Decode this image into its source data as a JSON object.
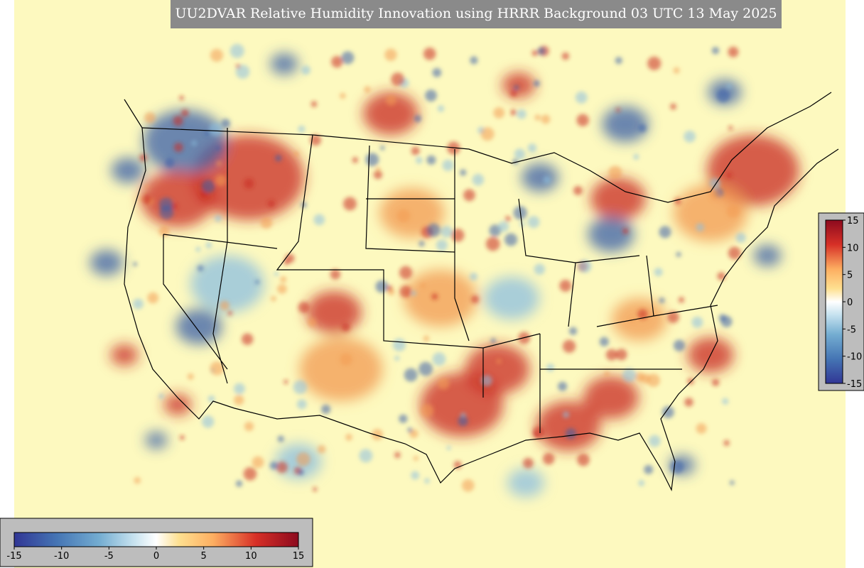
{
  "title": "UU2DVAR Relative Humidity Innovation using HRRR Background 03 UTC 13 May 2025",
  "colorbar_horizontal": {
    "ticks": [
      -15,
      -10,
      -5,
      0,
      5,
      10,
      15
    ]
  },
  "colorbar_vertical": {
    "ticks": [
      15,
      10,
      5,
      0,
      -5,
      -10,
      -15
    ]
  }
}
